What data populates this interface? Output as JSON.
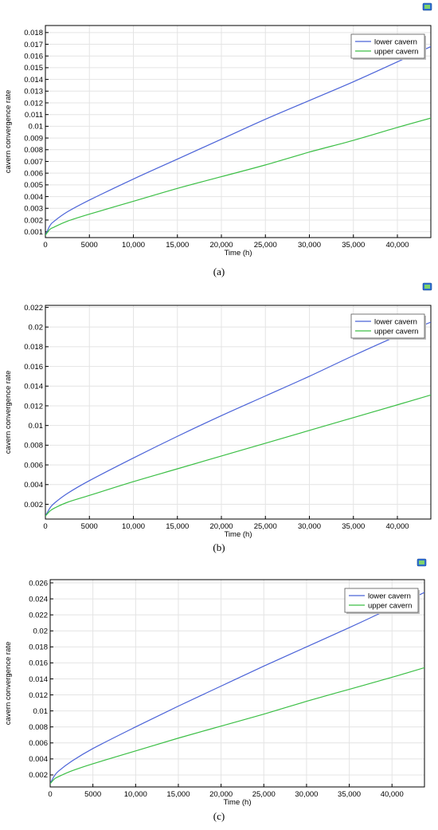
{
  "figure_icon": "comsol-plot-icon",
  "panels": [
    {
      "caption": "(a)"
    },
    {
      "caption": "(b)"
    },
    {
      "caption": "(c)"
    }
  ],
  "colors": {
    "lower_cavern": "#4b63d8",
    "upper_cavern": "#3cbf46",
    "grid": "#e4e4e4",
    "axis": "#000000"
  },
  "chart_data": [
    {
      "type": "line",
      "xlabel": "Time (h)",
      "ylabel": "cavern convergence rate",
      "xlim": [
        0,
        43800
      ],
      "ylim": [
        0.0005,
        0.0186
      ],
      "grid": true,
      "legend_position": "top-right",
      "xticks": [
        0,
        5000,
        10000,
        15000,
        20000,
        25000,
        30000,
        35000,
        40000
      ],
      "xtick_labels": [
        "0",
        "5000",
        "10,000",
        "15,000",
        "20,000",
        "25,000",
        "30,000",
        "35,000",
        "40,000"
      ],
      "yticks": [
        0.001,
        0.002,
        0.003,
        0.004,
        0.005,
        0.006,
        0.007,
        0.008,
        0.009,
        0.01,
        0.011,
        0.012,
        0.013,
        0.014,
        0.015,
        0.016,
        0.017,
        0.018
      ],
      "ytick_labels": [
        "0.001",
        "0.002",
        "0.003",
        "0.004",
        "0.005",
        "0.006",
        "0.007",
        "0.008",
        "0.009",
        "0.01",
        "0.011",
        "0.012",
        "0.013",
        "0.014",
        "0.015",
        "0.016",
        "0.017",
        "0.018"
      ],
      "x": [
        0,
        500,
        1000,
        2500,
        5000,
        10000,
        15000,
        20000,
        25000,
        30000,
        35000,
        40000,
        43800
      ],
      "series": [
        {
          "name": "lower cavern",
          "color": "#4b63d8",
          "values": [
            0.0007,
            0.0015,
            0.0019,
            0.0027,
            0.0037,
            0.0055,
            0.0072,
            0.0089,
            0.0106,
            0.0122,
            0.0138,
            0.0155,
            0.0168
          ]
        },
        {
          "name": "upper cavern",
          "color": "#3cbf46",
          "values": [
            0.0007,
            0.0012,
            0.0014,
            0.0019,
            0.0025,
            0.0036,
            0.0047,
            0.0057,
            0.0067,
            0.0078,
            0.0088,
            0.0099,
            0.0107
          ]
        }
      ]
    },
    {
      "type": "line",
      "xlabel": "Time (h)",
      "ylabel": "cavern convergence rate",
      "xlim": [
        0,
        43800
      ],
      "ylim": [
        0.0005,
        0.0222
      ],
      "grid": true,
      "legend_position": "top-right",
      "xticks": [
        0,
        5000,
        10000,
        15000,
        20000,
        25000,
        30000,
        35000,
        40000
      ],
      "xtick_labels": [
        "0",
        "5000",
        "10,000",
        "15,000",
        "20,000",
        "25,000",
        "30,000",
        "35,000",
        "40,000"
      ],
      "yticks": [
        0.002,
        0.004,
        0.006,
        0.008,
        0.01,
        0.012,
        0.014,
        0.016,
        0.018,
        0.02,
        0.022
      ],
      "ytick_labels": [
        "0.002",
        "0.004",
        "0.006",
        "0.008",
        "0.01",
        "0.012",
        "0.014",
        "0.016",
        "0.018",
        "0.02",
        "0.022"
      ],
      "x": [
        0,
        500,
        1000,
        2500,
        5000,
        10000,
        15000,
        20000,
        25000,
        30000,
        35000,
        40000,
        43800
      ],
      "series": [
        {
          "name": "lower cavern",
          "color": "#4b63d8",
          "values": [
            0.0008,
            0.0016,
            0.0021,
            0.0031,
            0.0044,
            0.0067,
            0.0089,
            0.011,
            0.013,
            0.015,
            0.0171,
            0.0191,
            0.0205
          ]
        },
        {
          "name": "upper cavern",
          "color": "#3cbf46",
          "values": [
            0.0008,
            0.0013,
            0.0016,
            0.0022,
            0.0029,
            0.0043,
            0.0056,
            0.0069,
            0.0082,
            0.0095,
            0.0108,
            0.0121,
            0.0131
          ]
        }
      ]
    },
    {
      "type": "line",
      "xlabel": "Time (h)",
      "ylabel": "cavern convergence rate",
      "xlim": [
        0,
        43800
      ],
      "ylim": [
        0.0005,
        0.0264
      ],
      "grid": true,
      "legend_position": "top-right",
      "xticks": [
        0,
        5000,
        10000,
        15000,
        20000,
        25000,
        30000,
        35000,
        40000
      ],
      "xtick_labels": [
        "0",
        "5000",
        "10,000",
        "15,000",
        "20,000",
        "25,000",
        "30,000",
        "35,000",
        "40,000"
      ],
      "yticks": [
        0.002,
        0.004,
        0.006,
        0.008,
        0.01,
        0.012,
        0.014,
        0.016,
        0.018,
        0.02,
        0.022,
        0.024,
        0.026
      ],
      "ytick_labels": [
        "0.002",
        "0.004",
        "0.006",
        "0.008",
        "0.01",
        "0.012",
        "0.014",
        "0.016",
        "0.018",
        "0.02",
        "0.022",
        "0.024",
        "0.026"
      ],
      "x": [
        0,
        500,
        1000,
        2500,
        5000,
        10000,
        15000,
        20000,
        25000,
        30000,
        35000,
        40000,
        43800
      ],
      "series": [
        {
          "name": "lower cavern",
          "color": "#4b63d8",
          "values": [
            0.0009,
            0.0019,
            0.0025,
            0.0037,
            0.0053,
            0.008,
            0.0106,
            0.0131,
            0.0156,
            0.018,
            0.0204,
            0.0229,
            0.0248
          ]
        },
        {
          "name": "upper cavern",
          "color": "#3cbf46",
          "values": [
            0.0009,
            0.0015,
            0.0018,
            0.0025,
            0.0034,
            0.005,
            0.0066,
            0.0081,
            0.0096,
            0.0112,
            0.0127,
            0.0142,
            0.0154
          ]
        }
      ]
    }
  ]
}
